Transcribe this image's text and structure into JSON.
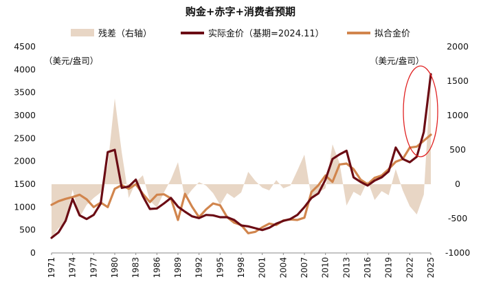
{
  "chart_data": {
    "type": "line",
    "title": "购金+赤字+消费者预期",
    "left_unit": "（美元/盎司）",
    "right_unit": "（美元/盎司）",
    "ylim_left": [
      0,
      4500
    ],
    "ylim_right": [
      -1000,
      2000
    ],
    "left_ticks": [
      0,
      500,
      1000,
      1500,
      2000,
      2500,
      3000,
      3500,
      4000,
      4500
    ],
    "right_ticks": [
      -1000,
      -500,
      0,
      500,
      1000,
      1500,
      2000
    ],
    "x_ticks": [
      "1971",
      "1974",
      "1977",
      "1980",
      "1983",
      "1986",
      "1989",
      "1992",
      "1995",
      "1998",
      "2001",
      "2004",
      "2007",
      "2010",
      "2013",
      "2016",
      "2019",
      "2022",
      "2025"
    ],
    "x_range": [
      1971,
      2025
    ],
    "series": [
      {
        "name": "残差（右轴）",
        "axis": "right",
        "style": "area",
        "color": "#e8d6c5",
        "x": [
          1971,
          1972,
          1973,
          1974,
          1975,
          1976,
          1977,
          1978,
          1979,
          1980,
          1981,
          1982,
          1983,
          1984,
          1985,
          1986,
          1987,
          1988,
          1989,
          1990,
          1991,
          1992,
          1993,
          1994,
          1995,
          1996,
          1997,
          1998,
          1999,
          2000,
          2001,
          2002,
          2003,
          2004,
          2005,
          2006,
          2007,
          2008,
          2009,
          2010,
          2011,
          2012,
          2013,
          2014,
          2015,
          2016,
          2017,
          2018,
          2019,
          2020,
          2021,
          2022,
          2023,
          2024,
          2025
        ],
        "values": [
          -780,
          -640,
          -560,
          -80,
          -480,
          -300,
          -200,
          -120,
          270,
          1250,
          460,
          -200,
          30,
          130,
          -240,
          -340,
          -120,
          70,
          320,
          -210,
          -80,
          30,
          -20,
          -130,
          -300,
          -130,
          -200,
          -120,
          180,
          50,
          -50,
          -90,
          60,
          -60,
          -20,
          200,
          430,
          -200,
          -120,
          -60,
          580,
          310,
          -310,
          -110,
          -170,
          50,
          -230,
          -100,
          -160,
          220,
          -90,
          -320,
          -440,
          -150,
          1600
        ]
      },
      {
        "name": "实际金价（基期=2024.11）",
        "axis": "left",
        "style": "line",
        "color": "#6b0c14",
        "x": [
          1971,
          1972,
          1973,
          1974,
          1975,
          1976,
          1977,
          1978,
          1979,
          1980,
          1981,
          1982,
          1983,
          1984,
          1985,
          1986,
          1987,
          1988,
          1989,
          1990,
          1991,
          1992,
          1993,
          1994,
          1995,
          1996,
          1997,
          1998,
          1999,
          2000,
          2001,
          2002,
          2003,
          2004,
          2005,
          2006,
          2007,
          2008,
          2009,
          2010,
          2011,
          2012,
          2013,
          2014,
          2015,
          2016,
          2017,
          2018,
          2019,
          2020,
          2021,
          2022,
          2023,
          2024,
          2025
        ],
        "values": [
          330,
          450,
          700,
          1180,
          820,
          740,
          830,
          1080,
          2200,
          2250,
          1420,
          1450,
          1600,
          1240,
          960,
          970,
          1080,
          1200,
          1010,
          900,
          800,
          760,
          830,
          820,
          780,
          780,
          720,
          600,
          580,
          540,
          500,
          550,
          640,
          700,
          740,
          830,
          1000,
          1200,
          1300,
          1600,
          2050,
          2150,
          2230,
          1650,
          1550,
          1470,
          1580,
          1650,
          1780,
          2300,
          2050,
          1980,
          2100,
          2640,
          3900
        ]
      },
      {
        "name": "拟合金价",
        "axis": "left",
        "style": "line",
        "color": "#d1854d",
        "x": [
          1971,
          1972,
          1973,
          1974,
          1975,
          1976,
          1977,
          1978,
          1979,
          1980,
          1981,
          1982,
          1983,
          1984,
          1985,
          1986,
          1987,
          1988,
          1989,
          1990,
          1991,
          1992,
          1993,
          1994,
          1995,
          1996,
          1997,
          1998,
          1999,
          2000,
          2001,
          2002,
          2003,
          2004,
          2005,
          2006,
          2007,
          2008,
          2009,
          2010,
          2011,
          2012,
          2013,
          2014,
          2015,
          2016,
          2017,
          2018,
          2019,
          2020,
          2021,
          2022,
          2023,
          2024,
          2025
        ],
        "values": [
          1050,
          1130,
          1180,
          1220,
          1270,
          1170,
          1000,
          1100,
          1000,
          1400,
          1480,
          1400,
          1500,
          1290,
          1110,
          1270,
          1280,
          1190,
          720,
          1290,
          1010,
          780,
          950,
          1080,
          1040,
          780,
          660,
          610,
          430,
          460,
          560,
          640,
          610,
          710,
          730,
          720,
          770,
          1330,
          1480,
          1690,
          1550,
          1930,
          1950,
          1830,
          1600,
          1500,
          1640,
          1690,
          1830,
          1990,
          2050,
          2300,
          2320,
          2450,
          2580
        ]
      }
    ],
    "annotation": "red ellipse highlighting 2024-2025"
  }
}
